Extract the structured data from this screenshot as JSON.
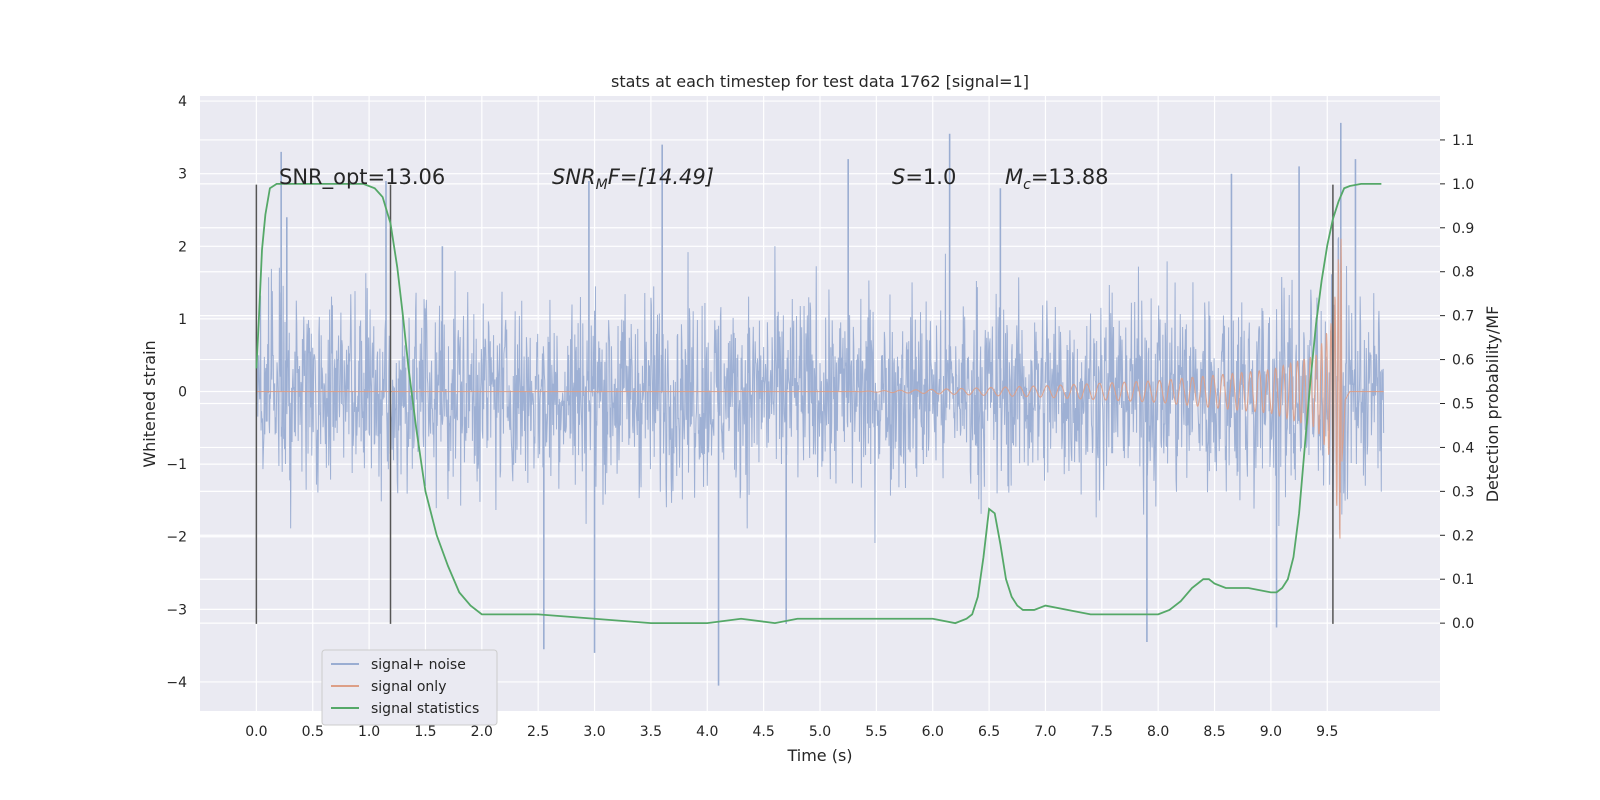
{
  "chart_data": {
    "type": "line",
    "title": "stats at each timestep for test data 1762 [signal=1]",
    "xlabel": "Time (s)",
    "ylabel": "Whitened strain",
    "ylabel_right": "Detection probability/MF",
    "xlim": [
      -0.5,
      10.5
    ],
    "ylim": [
      -4.4,
      4.07
    ],
    "ylim_right": [
      -0.2,
      1.2
    ],
    "x_ticks": [
      "0.0",
      "0.5",
      "1.0",
      "1.5",
      "2.0",
      "2.5",
      "3.0",
      "3.5",
      "4.0",
      "4.5",
      "5.0",
      "5.5",
      "6.0",
      "6.5",
      "7.0",
      "7.5",
      "8.0",
      "8.5",
      "9.0",
      "9.5"
    ],
    "y_ticks": [
      "−4",
      "−3",
      "−2",
      "−1",
      "0",
      "1",
      "2",
      "3",
      "4"
    ],
    "y_right_ticks": [
      "0.0",
      "0.1",
      "0.2",
      "0.3",
      "0.4",
      "0.5",
      "0.6",
      "0.7",
      "0.8",
      "0.9",
      "1.0",
      "1.1"
    ],
    "annotations": {
      "snr_opt": "SNR_opt=13.06",
      "snr_mf_main": "SNR",
      "snr_mf_sub": "M",
      "snr_mf_rest": "F=[14.49]",
      "s_main": "S",
      "s_rest": "=1.0",
      "mc_main": "M",
      "mc_sub": "c",
      "mc_rest": "=13.88"
    },
    "vertical_markers_s": [
      0.0,
      1.19,
      9.55
    ],
    "marker_y_range": [
      -3.2,
      2.85
    ],
    "grid": true,
    "legend_position": "lower-left",
    "series": [
      {
        "name": "signal+ noise",
        "color": "#9aadd2",
        "t_range": [
          0.0,
          10.0
        ],
        "amplitude_envelope": 1.6,
        "peak_values": [
          {
            "x": 0.22,
            "y": 3.3
          },
          {
            "x": 0.27,
            "y": 2.4
          },
          {
            "x": 1.15,
            "y": 2.9
          },
          {
            "x": 1.65,
            "y": 2.0
          },
          {
            "x": 2.55,
            "y": -3.55
          },
          {
            "x": 2.95,
            "y": 2.9
          },
          {
            "x": 3.0,
            "y": -3.6
          },
          {
            "x": 3.6,
            "y": 3.4
          },
          {
            "x": 4.1,
            "y": -4.05
          },
          {
            "x": 4.7,
            "y": -3.2
          },
          {
            "x": 5.25,
            "y": 3.2
          },
          {
            "x": 6.15,
            "y": 3.55
          },
          {
            "x": 6.6,
            "y": 2.8
          },
          {
            "x": 7.9,
            "y": -3.45
          },
          {
            "x": 8.65,
            "y": 3.0
          },
          {
            "x": 9.05,
            "y": -3.25
          },
          {
            "x": 9.62,
            "y": 3.7
          },
          {
            "x": 9.75,
            "y": 3.2
          },
          {
            "x": 9.25,
            "y": 3.1
          }
        ]
      },
      {
        "name": "signal only",
        "color": "#dd9f87",
        "t_range": [
          0.0,
          10.0
        ],
        "chirp_start_s": 5.3,
        "merger_s": 9.63,
        "amplitude_points": [
          {
            "x": 5.3,
            "y": 0.0
          },
          {
            "x": 6.0,
            "y": 0.03
          },
          {
            "x": 7.0,
            "y": 0.08
          },
          {
            "x": 8.0,
            "y": 0.15
          },
          {
            "x": 9.0,
            "y": 0.3
          },
          {
            "x": 9.4,
            "y": 0.5
          },
          {
            "x": 9.55,
            "y": 1.0
          },
          {
            "x": 9.62,
            "y": 2.25
          },
          {
            "x": 9.66,
            "y": 0.2
          },
          {
            "x": 9.7,
            "y": 0.0
          }
        ]
      },
      {
        "name": "signal statistics",
        "color": "#55a868",
        "axis": "right",
        "x": [
          0.0,
          0.02,
          0.05,
          0.08,
          0.12,
          0.18,
          0.3,
          0.5,
          0.7,
          0.95,
          1.05,
          1.12,
          1.19,
          1.25,
          1.3,
          1.35,
          1.42,
          1.5,
          1.6,
          1.7,
          1.8,
          1.9,
          2.0,
          2.2,
          2.5,
          3.0,
          3.5,
          4.0,
          4.3,
          4.6,
          4.8,
          5.0,
          5.2,
          5.5,
          5.8,
          6.0,
          6.2,
          6.3,
          6.35,
          6.4,
          6.45,
          6.5,
          6.55,
          6.6,
          6.65,
          6.7,
          6.75,
          6.8,
          6.9,
          7.0,
          7.2,
          7.4,
          7.6,
          7.8,
          8.0,
          8.1,
          8.2,
          8.3,
          8.35,
          8.4,
          8.45,
          8.5,
          8.6,
          8.8,
          9.0,
          9.05,
          9.1,
          9.15,
          9.2,
          9.25,
          9.3,
          9.35,
          9.4,
          9.45,
          9.5,
          9.55,
          9.6,
          9.65,
          9.7,
          9.8,
          9.9,
          9.98
        ],
        "values": [
          0.58,
          0.68,
          0.85,
          0.93,
          0.99,
          1.0,
          1.0,
          1.0,
          1.0,
          1.0,
          0.99,
          0.97,
          0.91,
          0.81,
          0.7,
          0.58,
          0.44,
          0.3,
          0.2,
          0.13,
          0.07,
          0.04,
          0.02,
          0.02,
          0.02,
          0.01,
          0.0,
          0.0,
          0.01,
          0.0,
          0.01,
          0.01,
          0.01,
          0.01,
          0.01,
          0.01,
          0.0,
          0.01,
          0.02,
          0.06,
          0.15,
          0.26,
          0.25,
          0.18,
          0.1,
          0.06,
          0.04,
          0.03,
          0.03,
          0.04,
          0.03,
          0.02,
          0.02,
          0.02,
          0.02,
          0.03,
          0.05,
          0.08,
          0.09,
          0.1,
          0.1,
          0.09,
          0.08,
          0.08,
          0.07,
          0.07,
          0.08,
          0.1,
          0.15,
          0.25,
          0.4,
          0.55,
          0.68,
          0.78,
          0.86,
          0.92,
          0.96,
          0.99,
          0.995,
          1.0,
          1.0,
          1.0
        ]
      }
    ]
  }
}
